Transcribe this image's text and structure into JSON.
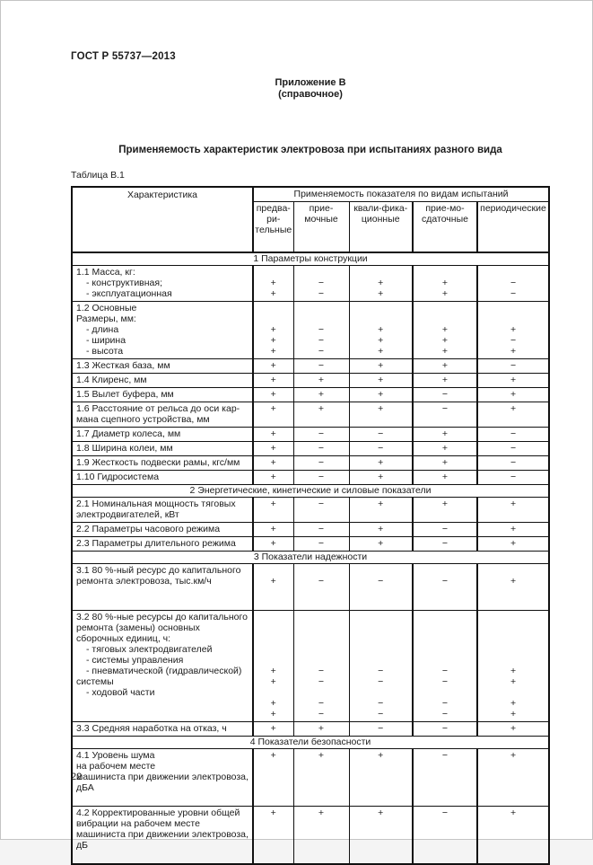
{
  "colors": {
    "ink": "#1c1c1c",
    "paper": "#ffffff",
    "table_line": "#111111"
  },
  "page": {
    "standard_ref": "ГОСТ Р 55737—2013",
    "appendix_heading": "Приложение В",
    "appendix_kind": "(справочное)",
    "title": "Применяемость характеристик электровоза при испытаниях разного вида",
    "table_caption": "Таблица В.1",
    "page_number": "22"
  },
  "table": {
    "characteristic_header": "Характеристика",
    "group_header": "Применяемость показателя по видам испытаний",
    "columns": [
      {
        "id": "preliminary",
        "lines": [
          "предва-",
          "ри-",
          "тельные"
        ]
      },
      {
        "id": "acceptance",
        "lines": [
          "прие-",
          "мочные"
        ]
      },
      {
        "id": "qualification",
        "lines": [
          "квали-фика-",
          "ционные"
        ]
      },
      {
        "id": "handover",
        "lines": [
          "прие-мо-",
          "сдаточные"
        ]
      },
      {
        "id": "periodic",
        "lines": [
          "периодические"
        ]
      }
    ],
    "rows": [
      {
        "type": "section",
        "label": "1 Параметры конструкции"
      },
      {
        "type": "data",
        "lines": [
          {
            "t": "1.1 Масса, кг:"
          },
          {
            "t": "- конструктивная;",
            "i": 1,
            "m": [
              "+",
              "−",
              "+",
              "+",
              "−"
            ]
          },
          {
            "t": "- эксплуатационная",
            "i": 1,
            "m": [
              "+",
              "−",
              "+",
              "+",
              "−"
            ]
          }
        ]
      },
      {
        "type": "data",
        "lines": [
          {
            "t": "1.2 Основные"
          },
          {
            "t": "Размеры, мм:"
          },
          {
            "t": "- длина",
            "i": 1,
            "m": [
              "+",
              "−",
              "+",
              "+",
              "+"
            ]
          },
          {
            "t": "- ширина",
            "i": 1,
            "m": [
              "+",
              "−",
              "+",
              "+",
              "−"
            ]
          },
          {
            "t": "- высота",
            "i": 1,
            "m": [
              "+",
              "−",
              "+",
              "+",
              "+"
            ]
          }
        ]
      },
      {
        "type": "data",
        "lines": [
          {
            "t": "1.3 Жесткая база, мм",
            "m": [
              "+",
              "−",
              "+",
              "+",
              "−"
            ]
          }
        ]
      },
      {
        "type": "data",
        "lines": [
          {
            "t": "1.4 Клиренс, мм",
            "m": [
              "+",
              "+",
              "+",
              "+",
              "+"
            ]
          }
        ]
      },
      {
        "type": "data",
        "lines": [
          {
            "t": "1.5 Вылет буфера, мм",
            "m": [
              "+",
              "+",
              "+",
              "−",
              "+"
            ]
          }
        ]
      },
      {
        "type": "data",
        "lines": [
          {
            "t": "1.6 Расстояние от рельса до оси кар-",
            "m": [
              "+",
              "+",
              "+",
              "−",
              "+"
            ]
          },
          {
            "t": "мана сцепного устройства, мм"
          }
        ]
      },
      {
        "type": "data",
        "lines": [
          {
            "t": "1.7 Диаметр колеса, мм",
            "m": [
              "+",
              "−",
              "−",
              "+",
              "−"
            ]
          }
        ]
      },
      {
        "type": "data",
        "lines": [
          {
            "t": "1.8 Ширина колеи, мм",
            "m": [
              "+",
              "−",
              "−",
              "+",
              "−"
            ]
          }
        ]
      },
      {
        "type": "data",
        "lines": [
          {
            "t": "1.9 Жесткость подвески рамы, кгс/мм",
            "m": [
              "+",
              "−",
              "+",
              "+",
              "−"
            ]
          }
        ]
      },
      {
        "type": "data",
        "lines": [
          {
            "t": "1.10 Гидросистема",
            "m": [
              "+",
              "−",
              "+",
              "+",
              "−"
            ]
          }
        ]
      },
      {
        "type": "section",
        "label": "2 Энергетические, кинетические и силовые показатели"
      },
      {
        "type": "data",
        "lines": [
          {
            "t": "2.1 Номинальная мощность тяговых",
            "m": [
              "+",
              "−",
              "+",
              "+",
              "+"
            ]
          },
          {
            "t": "электродвигателей, кВт"
          }
        ]
      },
      {
        "type": "data",
        "lines": [
          {
            "t": "2.2 Параметры часового режима",
            "m": [
              "+",
              "−",
              "+",
              "−",
              "+"
            ]
          }
        ]
      },
      {
        "type": "data",
        "lines": [
          {
            "t": "2.3 Параметры длительного режима",
            "m": [
              "+",
              "−",
              "+",
              "−",
              "+"
            ]
          }
        ]
      },
      {
        "type": "section",
        "label": "3 Показатели надежности"
      },
      {
        "type": "data",
        "lines": [
          {
            "t": "3.1 80 %-ный ресурс до капитального"
          },
          {
            "t": "ремонта электровоза, тыс.км/ч",
            "m": [
              "+",
              "−",
              "−",
              "−",
              "+"
            ]
          },
          {
            "t": ""
          },
          {
            "t": ""
          }
        ]
      },
      {
        "type": "data",
        "lines": [
          {
            "t": "3.2 80 %-ные ресурсы до капитального"
          },
          {
            "t": "ремонта (замены) основных"
          },
          {
            "t": "сборочных единиц, ч:"
          },
          {
            "t": "- тяговых электродвигателей",
            "i": 1
          },
          {
            "t": "- системы управления",
            "i": 1
          },
          {
            "t": "- пневматической (гидравлической)",
            "i": 1,
            "m": [
              "+",
              "−",
              "−",
              "−",
              "+"
            ]
          },
          {
            "t": "системы",
            "m": [
              "+",
              "−",
              "−",
              "−",
              "+"
            ]
          },
          {
            "t": "- ходовой части",
            "i": 1
          },
          {
            "t": "",
            "m": [
              "+",
              "−",
              "−",
              "−",
              "+"
            ]
          },
          {
            "t": "",
            "m": [
              "+",
              "−",
              "−",
              "−",
              "+"
            ]
          }
        ]
      },
      {
        "type": "data",
        "lines": [
          {
            "t": "3.3 Средняя наработка на отказ, ч",
            "m": [
              "+",
              "+",
              "−",
              "−",
              "+"
            ]
          }
        ]
      },
      {
        "type": "section",
        "label": "4 Показатели безопасности"
      },
      {
        "type": "data",
        "lines": [
          {
            "t": "4.1 Уровень шума",
            "m": [
              "+",
              "+",
              "+",
              "−",
              "+"
            ]
          },
          {
            "t": "на рабочем месте"
          },
          {
            "t": "машиниста при движении электровоза,"
          },
          {
            "t": "дБА"
          },
          {
            "t": ""
          }
        ]
      },
      {
        "type": "data",
        "lines": [
          {
            "t": "4.2 Корректированные уровни общей",
            "m": [
              "+",
              "+",
              "+",
              "−",
              "+"
            ]
          },
          {
            "t": "вибрации на рабочем месте"
          },
          {
            "t": "машиниста при движении электровоза,"
          },
          {
            "t": "дБ"
          },
          {
            "t": ""
          }
        ]
      }
    ]
  }
}
